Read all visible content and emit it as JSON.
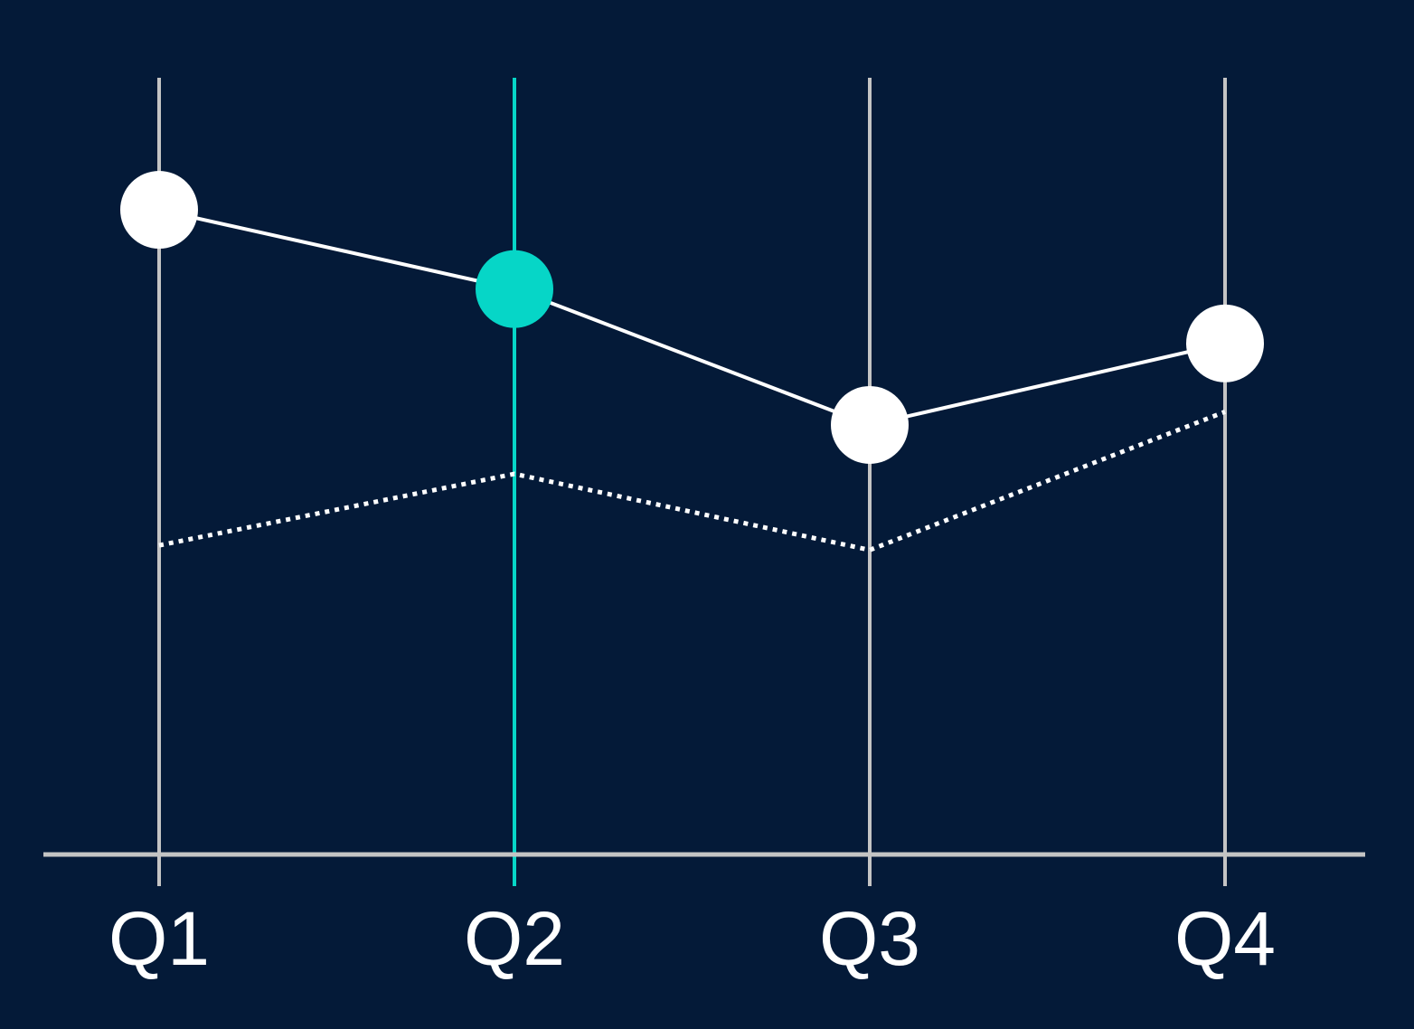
{
  "chart_data": {
    "type": "line",
    "categories": [
      "Q1",
      "Q2",
      "Q3",
      "Q4"
    ],
    "series": [
      {
        "color": "#ffffff",
        "style": "solid",
        "markers": true,
        "values": [
          83.0,
          72.8,
          55.3,
          65.8
        ]
      },
      {
        "color": "#ffffff",
        "style": "dotted",
        "markers": false,
        "values": [
          39.8,
          49.0,
          39.2,
          57.0
        ]
      }
    ],
    "ylim": [
      0,
      100
    ],
    "highlight_index": 1,
    "highlight_color": "#06d6c7",
    "axis_color": "#c4c4c4",
    "background": "#041a38"
  }
}
